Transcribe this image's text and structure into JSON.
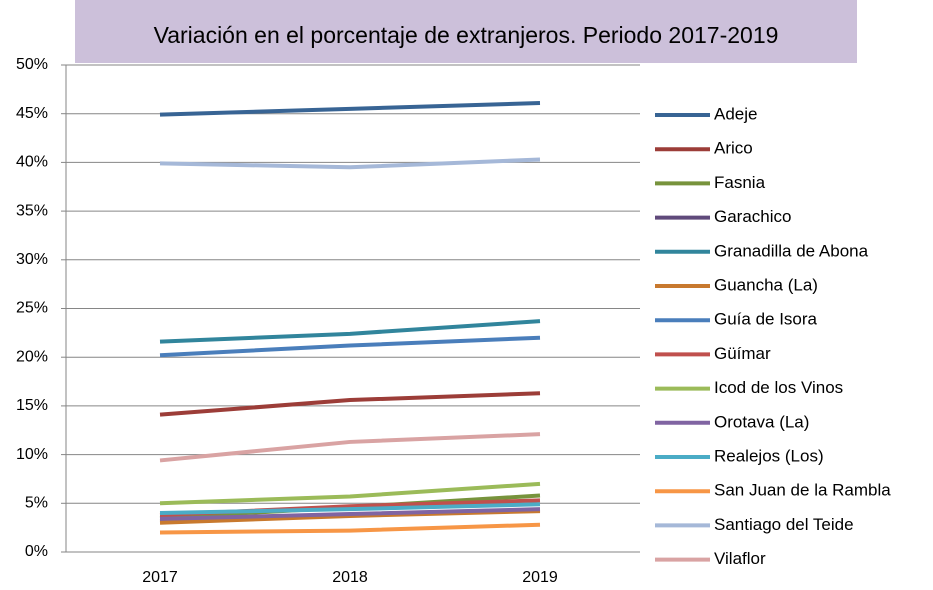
{
  "chart_data": {
    "type": "line",
    "title": "Variación en el porcentaje de extranjeros. Periodo 2017-2019",
    "categories": [
      "2017",
      "2018",
      "2019"
    ],
    "ylim": [
      0,
      50
    ],
    "yticks": [
      {
        "value": 0,
        "label": "0%"
      },
      {
        "value": 5,
        "label": "5%"
      },
      {
        "value": 10,
        "label": "10%"
      },
      {
        "value": 15,
        "label": "15%"
      },
      {
        "value": 20,
        "label": "20%"
      },
      {
        "value": 25,
        "label": "25%"
      },
      {
        "value": 30,
        "label": "30%"
      },
      {
        "value": 35,
        "label": "35%"
      },
      {
        "value": 40,
        "label": "40%"
      },
      {
        "value": 45,
        "label": "45%"
      },
      {
        "value": 50,
        "label": "50%"
      }
    ],
    "grid": true,
    "legend": "right",
    "series": [
      {
        "name": "Adeje",
        "color": "#386494",
        "values": [
          44.9,
          45.5,
          46.1
        ]
      },
      {
        "name": "Arico",
        "color": "#9c3d38",
        "values": [
          14.1,
          15.6,
          16.3
        ]
      },
      {
        "name": "Fasnia",
        "color": "#77933c",
        "values": [
          3.5,
          4.6,
          5.8
        ]
      },
      {
        "name": "Garachico",
        "color": "#604a7b",
        "values": [
          3.2,
          3.8,
          4.3
        ]
      },
      {
        "name": "Granadilla de Abona",
        "color": "#31859c",
        "values": [
          21.6,
          22.4,
          23.7
        ]
      },
      {
        "name": "Guancha (La)",
        "color": "#c8792e",
        "values": [
          3.0,
          3.7,
          4.2
        ]
      },
      {
        "name": "Guía de Isora",
        "color": "#4a7ebb",
        "values": [
          20.2,
          21.2,
          22.0
        ]
      },
      {
        "name": "Güímar",
        "color": "#c0504d",
        "values": [
          3.8,
          4.7,
          5.3
        ]
      },
      {
        "name": "Icod de los Vinos",
        "color": "#9bbb59",
        "values": [
          5.0,
          5.7,
          7.0
        ]
      },
      {
        "name": "Orotava (La)",
        "color": "#8064a2",
        "values": [
          3.4,
          3.9,
          4.4
        ]
      },
      {
        "name": "Realejos (Los)",
        "color": "#4bacc6",
        "values": [
          4.0,
          4.4,
          4.9
        ]
      },
      {
        "name": "San Juan de la Rambla",
        "color": "#f79646",
        "values": [
          2.0,
          2.2,
          2.8
        ]
      },
      {
        "name": "Santiago del Teide",
        "color": "#a5b8d8",
        "values": [
          39.9,
          39.5,
          40.3
        ]
      },
      {
        "name": "Vilaflor",
        "color": "#d9a3a3",
        "values": [
          9.4,
          11.3,
          12.1
        ]
      }
    ]
  }
}
